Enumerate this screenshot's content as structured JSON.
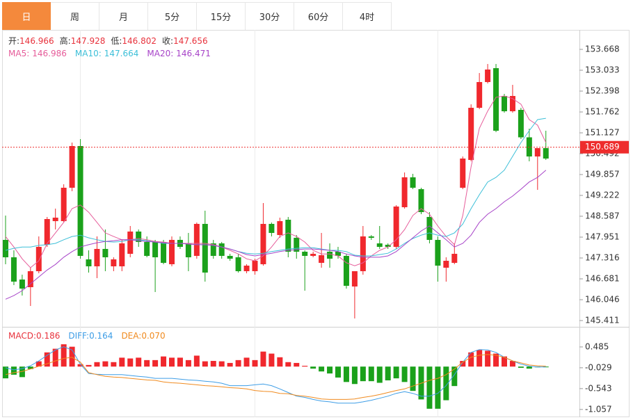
{
  "tabs": {
    "items": [
      "日",
      "周",
      "月",
      "5分",
      "15分",
      "30分",
      "60分",
      "4时"
    ],
    "active": 0
  },
  "chart_data": [
    {
      "type": "candlestick",
      "info": [
        {
          "label": "开:",
          "value": 146.966
        },
        {
          "label": "高:",
          "value": 147.928
        },
        {
          "label": "低:",
          "value": 146.802
        },
        {
          "label": "收:",
          "value": 147.656
        }
      ],
      "info_color": "#e8323c",
      "up_color": "#f0282d",
      "down_color": "#1ba11b",
      "open": [
        147.867,
        147.337,
        146.66,
        146.427,
        146.914,
        147.719,
        148.438,
        148.438,
        149.455,
        150.725,
        147.274,
        147.062,
        147.592,
        147.062,
        147.062,
        147.443,
        148.121,
        147.804,
        147.804,
        147.804,
        147.126,
        147.867,
        147.761,
        147.38,
        148.354,
        147.761,
        147.761,
        147.38,
        147.337,
        146.914,
        146.914,
        147.126,
        148.354,
        148.015,
        148.481,
        147.931,
        147.507,
        147.38,
        147.168,
        147.507,
        147.507,
        147.38,
        146.448,
        146.914,
        147.973,
        147.761,
        147.719,
        147.655,
        148.862,
        149.772,
        149.412,
        148.565,
        147.867,
        147.02,
        147.168,
        149.455,
        150.301,
        151.889,
        152.673,
        153.096,
        152.249,
        151.784,
        151.826,
        150.99,
        150.407,
        150.661
      ],
      "high": [
        148.608,
        147.55,
        146.808,
        147.02,
        147.973,
        148.565,
        148.819,
        149.56,
        150.831,
        150.937,
        147.55,
        147.973,
        148.184,
        147.337,
        147.867,
        148.29,
        148.184,
        147.973,
        147.867,
        147.867,
        147.973,
        147.973,
        148.079,
        148.396,
        148.756,
        147.867,
        147.804,
        147.443,
        147.443,
        147.126,
        147.295,
        148.989,
        148.396,
        148.544,
        148.565,
        148.015,
        147.55,
        147.507,
        148.079,
        147.761,
        147.655,
        147.443,
        146.914,
        148.29,
        148.015,
        148.29,
        147.761,
        148.925,
        149.92,
        149.878,
        149.455,
        148.713,
        147.973,
        147.337,
        147.761,
        150.407,
        151.995,
        152.948,
        153.223,
        153.223,
        152.312,
        152.588,
        151.889,
        151.254,
        150.661,
        151.191
      ],
      "low": [
        147.126,
        146.49,
        146.173,
        145.855,
        146.85,
        147.655,
        148.184,
        148.396,
        149.349,
        147.295,
        146.872,
        146.702,
        146.914,
        146.914,
        146.914,
        147.337,
        147.655,
        147.337,
        146.279,
        147.126,
        147.062,
        147.592,
        146.914,
        147.295,
        146.596,
        147.295,
        147.295,
        147.231,
        146.872,
        146.85,
        146.808,
        147.083,
        147.973,
        147.931,
        147.337,
        147.295,
        146.321,
        147.337,
        147.02,
        147.02,
        147.295,
        146.384,
        145.474,
        146.808,
        147.867,
        147.592,
        147.592,
        147.592,
        148.819,
        149.412,
        148.65,
        147.761,
        146.596,
        146.596,
        147.126,
        149.412,
        150.259,
        151.847,
        152.631,
        151.148,
        151.741,
        151.741,
        150.937,
        150.259,
        149.391,
        150.301
      ],
      "close": [
        147.337,
        146.596,
        146.384,
        146.914,
        147.655,
        148.502,
        148.544,
        149.455,
        150.725,
        147.38,
        147.062,
        147.592,
        147.337,
        147.274,
        147.761,
        148.121,
        147.804,
        147.38,
        147.337,
        147.168,
        147.867,
        147.655,
        147.337,
        148.354,
        146.872,
        147.38,
        147.38,
        147.295,
        146.914,
        147.083,
        147.231,
        148.354,
        148.079,
        148.438,
        147.507,
        147.507,
        147.38,
        147.443,
        147.401,
        147.295,
        147.38,
        146.469,
        146.914,
        147.973,
        147.931,
        147.655,
        147.655,
        148.883,
        149.772,
        149.455,
        148.713,
        147.867,
        147.083,
        147.231,
        147.443,
        150.344,
        151.889,
        152.673,
        153.054,
        151.191,
        151.784,
        152.249,
        150.99,
        150.407,
        150.661,
        150.344
      ],
      "series": [
        {
          "name": "MA5:",
          "legend_value": 146.986,
          "color": "#e65c9a",
          "values": [
            147.97,
            147.65,
            147.29,
            147.02,
            147.23,
            147.76,
            148.08,
            148.4,
            148.82,
            148.93,
            148.71,
            148.4,
            148.08,
            147.97,
            147.87,
            147.87,
            147.91,
            147.87,
            147.82,
            147.8,
            147.76,
            147.76,
            147.76,
            147.76,
            147.76,
            147.72,
            147.65,
            147.55,
            147.44,
            147.29,
            147.23,
            147.38,
            147.65,
            147.97,
            148.08,
            147.97,
            147.8,
            147.55,
            147.44,
            147.44,
            147.38,
            147.17,
            147.08,
            147.17,
            147.38,
            147.55,
            147.65,
            147.87,
            148.18,
            148.61,
            148.82,
            148.65,
            148.29,
            147.97,
            147.72,
            148.61,
            150.09,
            151.26,
            151.79,
            152.21,
            152.25,
            152.17,
            152.0,
            151.53,
            151.36,
            150.83
          ]
        },
        {
          "name": "MA10:",
          "legend_value": 147.664,
          "color": "#3cbfd8",
          "values": [
            147.55,
            147.61,
            147.65,
            147.65,
            147.7,
            147.72,
            147.76,
            147.87,
            147.97,
            148.01,
            147.93,
            147.87,
            147.82,
            147.8,
            147.82,
            147.87,
            147.87,
            147.84,
            147.8,
            147.76,
            147.76,
            147.76,
            147.74,
            147.72,
            147.72,
            147.7,
            147.65,
            147.59,
            147.51,
            147.46,
            147.44,
            147.46,
            147.51,
            147.55,
            147.59,
            147.61,
            147.63,
            147.63,
            147.59,
            147.55,
            147.55,
            147.51,
            147.4,
            147.38,
            147.38,
            147.42,
            147.46,
            147.59,
            147.76,
            147.91,
            148.01,
            148.08,
            148.01,
            147.97,
            148.08,
            148.35,
            148.82,
            149.24,
            149.63,
            149.77,
            149.99,
            150.41,
            150.83,
            151.19,
            151.53,
            151.57
          ]
        },
        {
          "name": "MA20:",
          "legend_value": 146.471,
          "color": "#a743c8",
          "values": [
            146.06,
            146.17,
            146.32,
            146.53,
            146.74,
            146.95,
            147.12,
            147.34,
            147.51,
            147.65,
            147.72,
            147.78,
            147.82,
            147.84,
            147.87,
            147.87,
            147.84,
            147.82,
            147.8,
            147.78,
            147.76,
            147.76,
            147.74,
            147.72,
            147.72,
            147.7,
            147.65,
            147.59,
            147.51,
            147.42,
            147.38,
            147.42,
            147.46,
            147.51,
            147.55,
            147.57,
            147.59,
            147.59,
            147.57,
            147.55,
            147.51,
            147.44,
            147.38,
            147.34,
            147.34,
            147.34,
            147.38,
            147.51,
            147.72,
            147.93,
            148.14,
            148.29,
            148.08,
            147.87,
            147.65,
            147.76,
            148.01,
            148.4,
            148.65,
            148.82,
            149.03,
            149.2,
            149.41,
            149.63,
            149.77,
            149.99
          ]
        }
      ],
      "ylim": [
        145.22,
        154.261
      ],
      "yticks": [
        153.668,
        153.033,
        152.398,
        151.762,
        151.127,
        150.492,
        149.857,
        149.222,
        148.587,
        147.951,
        147.316,
        146.681,
        146.046,
        145.411
      ],
      "last_price": {
        "value": 150.689,
        "color": "#ee2c2c"
      },
      "vgrid": [
        9,
        30,
        52
      ]
    },
    {
      "type": "macd",
      "histogram": {
        "name": "MACD:",
        "legend_value": 0.186,
        "color": "#e8323c",
        "up_color": "#f0282d",
        "down_color": "#1ba11b",
        "values": [
          -0.29,
          -0.2,
          -0.26,
          -0.06,
          0.13,
          0.35,
          0.44,
          0.55,
          0.49,
          0.06,
          0.04,
          0.11,
          0.13,
          0.11,
          0.22,
          0.2,
          0.22,
          0.16,
          0.16,
          0.25,
          0.22,
          0.22,
          0.16,
          0.27,
          0.13,
          0.14,
          0.13,
          0.09,
          0.16,
          0.22,
          0.16,
          0.37,
          0.32,
          0.23,
          0.11,
          0.09,
          0.02,
          -0.05,
          -0.12,
          -0.17,
          -0.27,
          -0.38,
          -0.43,
          -0.36,
          -0.36,
          -0.4,
          -0.34,
          -0.29,
          -0.38,
          -0.6,
          -0.81,
          -1.04,
          -1.04,
          -0.83,
          -0.48,
          0.14,
          0.35,
          0.41,
          0.39,
          0.32,
          0.25,
          0.14,
          -0.03,
          -0.05,
          -0.01,
          -0.01
        ]
      },
      "series": [
        {
          "name": "DIFF:",
          "legend_value": 0.164,
          "color": "#3d9de6",
          "values": [
            -0.03,
            -0.08,
            -0.05,
            0.02,
            0.14,
            0.28,
            0.41,
            0.49,
            0.41,
            0.06,
            -0.17,
            -0.19,
            -0.2,
            -0.2,
            -0.2,
            -0.22,
            -0.24,
            -0.26,
            -0.29,
            -0.29,
            -0.29,
            -0.31,
            -0.33,
            -0.34,
            -0.36,
            -0.38,
            -0.41,
            -0.47,
            -0.47,
            -0.47,
            -0.45,
            -0.43,
            -0.47,
            -0.55,
            -0.64,
            -0.73,
            -0.76,
            -0.81,
            -0.85,
            -0.87,
            -0.9,
            -0.9,
            -0.9,
            -0.87,
            -0.83,
            -0.78,
            -0.73,
            -0.66,
            -0.62,
            -0.66,
            -0.73,
            -0.73,
            -0.66,
            -0.47,
            -0.2,
            0.11,
            0.35,
            0.42,
            0.41,
            0.35,
            0.23,
            0.14,
            0.06,
            0.01,
            -0.01,
            -0.01
          ]
        },
        {
          "name": "DEA:",
          "legend_value": {
            "value": 0.07,
            "label": "0.070"
          },
          "color": "#f08a1e",
          "values": [
            -0.2,
            -0.15,
            -0.12,
            -0.06,
            0.01,
            0.07,
            0.14,
            0.2,
            0.23,
            0.11,
            -0.15,
            -0.2,
            -0.24,
            -0.26,
            -0.27,
            -0.29,
            -0.31,
            -0.33,
            -0.34,
            -0.38,
            -0.4,
            -0.41,
            -0.43,
            -0.45,
            -0.47,
            -0.48,
            -0.5,
            -0.52,
            -0.53,
            -0.55,
            -0.59,
            -0.61,
            -0.62,
            -0.66,
            -0.67,
            -0.71,
            -0.73,
            -0.76,
            -0.8,
            -0.81,
            -0.81,
            -0.81,
            -0.8,
            -0.76,
            -0.73,
            -0.69,
            -0.64,
            -0.59,
            -0.55,
            -0.48,
            -0.41,
            -0.34,
            -0.29,
            -0.2,
            -0.06,
            0.11,
            0.23,
            0.28,
            0.3,
            0.28,
            0.23,
            0.14,
            0.09,
            0.04,
            0.02,
            0.01
          ]
        }
      ],
      "ylim": [
        -1.249,
        0.981
      ],
      "yticks": [
        0.485,
        -0.029,
        -0.543,
        -1.057
      ]
    }
  ]
}
